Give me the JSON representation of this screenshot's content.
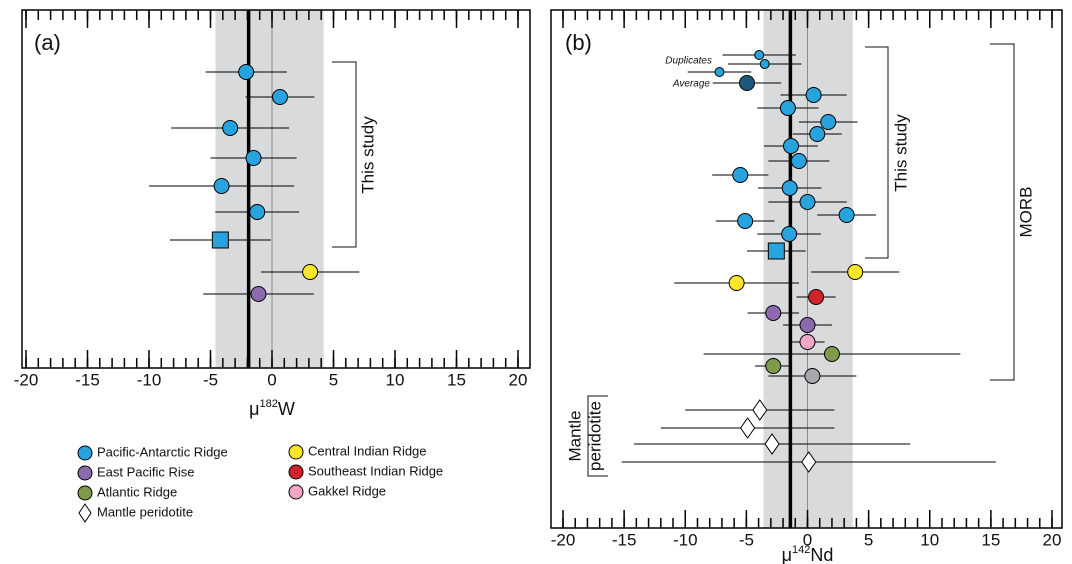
{
  "chart_data": [
    {
      "type": "scatter",
      "panel_label": "(a)",
      "xlabel": [
        "μ",
        "182",
        "W"
      ],
      "xlim": [
        -20,
        20
      ],
      "xticks": [
        -20,
        -15,
        -10,
        -5,
        0,
        5,
        10,
        15,
        20
      ],
      "minor_tick_step": 1,
      "band": [
        -4.6,
        4.2
      ],
      "mean": -1.9,
      "reference_line": 0,
      "annotations": [
        "This study"
      ],
      "series": [
        {
          "color": "#29a3de",
          "marker": "circle",
          "values": [
            -2.1,
            0.65,
            -3.4,
            -1.5,
            -4.1,
            -1.2
          ],
          "errors": [
            3.3,
            2.8,
            4.8,
            3.5,
            5.9,
            3.4
          ]
        },
        {
          "color": "#29a3de",
          "marker": "square",
          "values": [
            -4.2
          ],
          "errors": [
            4.1
          ]
        },
        {
          "color": "#fde52a",
          "marker": "circle",
          "values": [
            3.1
          ],
          "errors": [
            4.0
          ]
        },
        {
          "color": "#8b6aae",
          "marker": "circle",
          "values": [
            -1.1
          ],
          "errors": [
            4.5
          ]
        }
      ]
    },
    {
      "type": "scatter",
      "panel_label": "(b)",
      "xlabel": [
        "μ",
        "142",
        "Nd"
      ],
      "xlim": [
        -20,
        20
      ],
      "xticks": [
        -20,
        -15,
        -10,
        -5,
        0,
        5,
        10,
        15,
        20
      ],
      "minor_tick_step": 1,
      "band": [
        -3.6,
        3.7
      ],
      "mean": -1.4,
      "reference_line": 0,
      "annotations": [
        "Duplicates",
        "Average",
        "This study",
        "MORB",
        "Mantle",
        "peridotite"
      ],
      "legend": "below-left",
      "series": [
        {
          "name": "Pacific-Antarctic Ridge",
          "color": "#29a3de",
          "marker": "circle",
          "values": [
            0.5,
            -1.6,
            1.7,
            0.8,
            -1.35,
            -0.7,
            -5.5,
            -1.45,
            0,
            3.2,
            -5.1,
            -1.5
          ],
          "errors": [
            2.7,
            2.5,
            2.4,
            2.0,
            2.2,
            2.5,
            2.3,
            2.6,
            3.2,
            2.4,
            2.4,
            2.6
          ]
        },
        {
          "name": "East Pacific Rise",
          "color": "#8b6aae",
          "marker": "circle",
          "values": [
            -2.8,
            0
          ],
          "errors": [
            2.1,
            2.0
          ]
        },
        {
          "name": "Atlantic Ridge",
          "color": "#7f9a4a",
          "marker": "circle",
          "values": [
            2.0,
            -2.8
          ],
          "errors": [
            10.5,
            1.5
          ]
        },
        {
          "name": "Mantle peridotite",
          "color": "#ffffff",
          "marker": "diamond",
          "values": [
            -3.9,
            -4.9,
            -2.9,
            0.1
          ],
          "errors": [
            6.1,
            7.1,
            11.3,
            15.3
          ]
        },
        {
          "name": "Central Indian Ridge",
          "color": "#fde52a",
          "marker": "circle",
          "values": [
            3.9,
            -5.8
          ],
          "errors": [
            3.6,
            5.1
          ]
        },
        {
          "name": "Southeast Indian Ridge",
          "color": "#d2232a",
          "marker": "circle",
          "values": [
            0.7
          ],
          "errors": [
            1.6
          ]
        },
        {
          "name": "Gakkel Ridge",
          "color": "#f4a6c8",
          "marker": "circle",
          "values": [
            0
          ],
          "errors": [
            1.4
          ]
        },
        {
          "color": "#29a3de",
          "marker": "square",
          "values": [
            -2.55
          ],
          "errors": [
            2.4
          ]
        },
        {
          "color": "#a7a9ac",
          "marker": "circle",
          "values": [
            0.4
          ],
          "errors": [
            3.6
          ]
        },
        {
          "color": "#29a3de",
          "marker": "small-circle",
          "values": [
            -3.95,
            -3.5,
            -7.2
          ],
          "errors": [
            3.0,
            3.0,
            2.6
          ]
        },
        {
          "color": "#1c5a7d",
          "marker": "circle",
          "values": [
            -4.95
          ],
          "errors": [
            2.8
          ]
        }
      ]
    }
  ]
}
